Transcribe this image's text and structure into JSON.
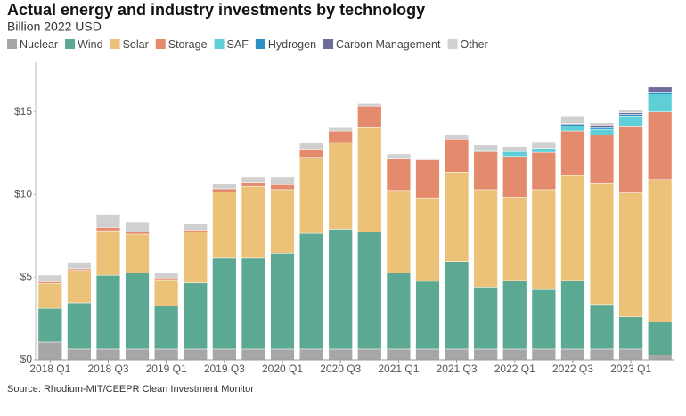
{
  "chart_data": {
    "type": "stacked_bar",
    "title": "Actual energy and industry investments by technology",
    "subtitle": "Billion 2022 USD",
    "source": "Source: Rhodium-MIT/CEEPR Clean Investment Monitor",
    "categories": [
      "2018 Q1",
      null,
      "2018 Q3",
      null,
      "2019 Q1",
      null,
      "2019 Q3",
      null,
      "2020 Q1",
      null,
      "2020 Q3",
      null,
      "2021 Q1",
      null,
      "2021 Q3",
      null,
      "2022 Q1",
      null,
      "2022 Q3",
      null,
      "2023 Q1",
      null
    ],
    "series": [
      {
        "name": "Nuclear",
        "color": "#a6a6a6",
        "values": [
          1.08,
          0.65,
          0.65,
          0.65,
          0.65,
          0.65,
          0.65,
          0.65,
          0.65,
          0.65,
          0.65,
          0.65,
          0.65,
          0.65,
          0.65,
          0.65,
          0.65,
          0.65,
          0.65,
          0.65,
          0.65,
          0.3
        ]
      },
      {
        "name": "Wind",
        "color": "#5ba893",
        "values": [
          2.04,
          2.8,
          4.46,
          4.6,
          2.6,
          4.0,
          5.5,
          5.5,
          5.8,
          7.0,
          7.25,
          7.1,
          4.6,
          4.1,
          5.3,
          3.75,
          4.15,
          3.65,
          4.15,
          2.7,
          1.95,
          2.0
        ]
      },
      {
        "name": "Solar",
        "color": "#ecc278",
        "values": [
          1.5,
          1.95,
          2.7,
          2.35,
          1.6,
          3.1,
          4.0,
          4.35,
          3.85,
          4.6,
          5.25,
          6.3,
          5.0,
          5.05,
          5.4,
          5.9,
          5.05,
          6.0,
          6.35,
          7.35,
          7.5,
          8.6
        ]
      },
      {
        "name": "Storage",
        "color": "#e48a6d",
        "values": [
          0.1,
          0.1,
          0.2,
          0.15,
          0.1,
          0.1,
          0.2,
          0.25,
          0.3,
          0.5,
          0.7,
          1.3,
          1.95,
          2.3,
          2.0,
          2.3,
          2.45,
          2.25,
          2.7,
          2.9,
          4.0,
          4.1
        ]
      },
      {
        "name": "SAF",
        "color": "#5ecfd6",
        "values": [
          0,
          0,
          0,
          0,
          0,
          0,
          0,
          0,
          0,
          0,
          0,
          0,
          0,
          0,
          0,
          0.1,
          0.3,
          0.25,
          0.3,
          0.35,
          0.65,
          1.1
        ]
      },
      {
        "name": "Hydrogen",
        "color": "#2a8fc7",
        "values": [
          0,
          0,
          0,
          0,
          0,
          0,
          0,
          0,
          0,
          0,
          0,
          0,
          0,
          0,
          0,
          0,
          0,
          0,
          0.1,
          0.1,
          0.1,
          0.1
        ]
      },
      {
        "name": "Carbon Management",
        "color": "#6e6a9a",
        "values": [
          0,
          0,
          0,
          0,
          0,
          0,
          0,
          0,
          0,
          0,
          0,
          0,
          0,
          0,
          0,
          0,
          0,
          0,
          0.05,
          0.1,
          0.1,
          0.3
        ]
      },
      {
        "name": "Other",
        "color": "#d0d0d0",
        "values": [
          0.4,
          0.4,
          0.8,
          0.6,
          0.3,
          0.4,
          0.3,
          0.3,
          0.45,
          0.4,
          0.2,
          0.15,
          0.25,
          0.1,
          0.25,
          0.3,
          0.3,
          0.4,
          0.45,
          0.2,
          0.15,
          0
        ]
      }
    ],
    "ylim": [
      0,
      18
    ],
    "yticks": [
      {
        "value": 0,
        "label": "$0"
      },
      {
        "value": 5,
        "label": "$5"
      },
      {
        "value": 10,
        "label": "$10"
      },
      {
        "value": 15,
        "label": "$15"
      }
    ]
  }
}
